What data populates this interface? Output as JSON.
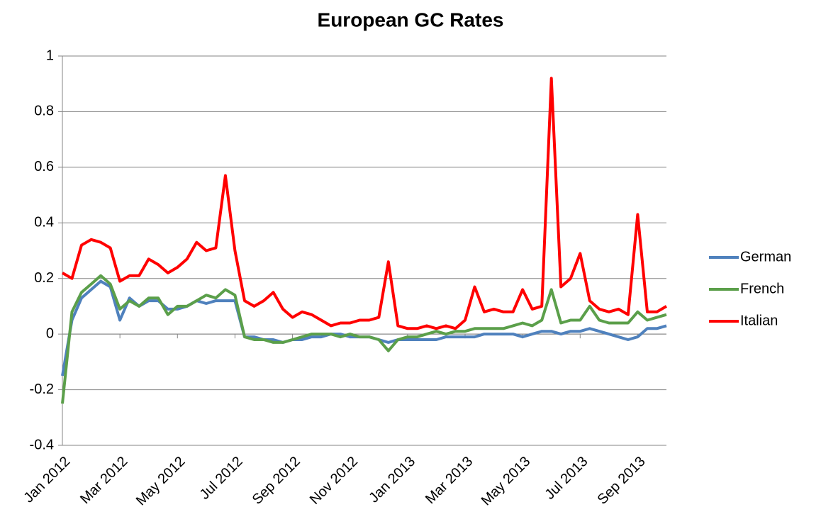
{
  "chart_data": {
    "type": "line",
    "title": "European GC Rates",
    "categories": [
      "Jan 2012",
      null,
      null,
      null,
      null,
      null,
      "Mar 2012",
      null,
      null,
      null,
      null,
      null,
      "May 2012",
      null,
      null,
      null,
      null,
      null,
      "Jul 2012",
      null,
      null,
      null,
      null,
      null,
      "Sep 2012",
      null,
      null,
      null,
      null,
      null,
      "Nov 2012",
      null,
      null,
      null,
      null,
      null,
      "Jan 2013",
      null,
      null,
      null,
      null,
      null,
      "Mar 2013",
      null,
      null,
      null,
      null,
      null,
      "May 2013",
      null,
      null,
      null,
      null,
      null,
      "Jul 2013",
      null,
      null,
      null,
      null,
      null,
      "Sep 2013",
      null,
      null,
      null
    ],
    "series": [
      {
        "name": "German",
        "color": "#4f81bd",
        "values": [
          -0.15,
          0.05,
          0.13,
          0.16,
          0.19,
          0.17,
          0.05,
          0.13,
          0.1,
          0.12,
          0.12,
          0.09,
          0.09,
          0.1,
          0.12,
          0.11,
          0.12,
          0.12,
          0.12,
          -0.01,
          -0.01,
          -0.02,
          -0.02,
          -0.03,
          -0.02,
          -0.02,
          -0.01,
          -0.01,
          0,
          0,
          -0.01,
          -0.01,
          -0.01,
          -0.02,
          -0.03,
          -0.02,
          -0.02,
          -0.02,
          -0.02,
          -0.02,
          -0.01,
          -0.01,
          -0.01,
          -0.01,
          0,
          0,
          0,
          0,
          -0.01,
          0,
          0.01,
          0.01,
          0,
          0.01,
          0.01,
          0.02,
          0.01,
          0,
          -0.01,
          -0.02,
          -0.01,
          0.02,
          0.02,
          0.03
        ]
      },
      {
        "name": "French",
        "color": "#5b9f4a",
        "values": [
          -0.25,
          0.08,
          0.15,
          0.18,
          0.21,
          0.18,
          0.09,
          0.12,
          0.1,
          0.13,
          0.13,
          0.07,
          0.1,
          0.1,
          0.12,
          0.14,
          0.13,
          0.16,
          0.14,
          -0.01,
          -0.02,
          -0.02,
          -0.03,
          -0.03,
          -0.02,
          -0.01,
          0,
          0,
          0,
          -0.01,
          0,
          -0.01,
          -0.01,
          -0.02,
          -0.06,
          -0.02,
          -0.01,
          -0.01,
          0,
          0.01,
          0,
          0.01,
          0.01,
          0.02,
          0.02,
          0.02,
          0.02,
          0.03,
          0.04,
          0.03,
          0.05,
          0.16,
          0.04,
          0.05,
          0.05,
          0.1,
          0.05,
          0.04,
          0.04,
          0.04,
          0.08,
          0.05,
          0.06,
          0.07
        ]
      },
      {
        "name": "Italian",
        "color": "#ff0000",
        "values": [
          0.22,
          0.2,
          0.32,
          0.34,
          0.33,
          0.31,
          0.19,
          0.21,
          0.21,
          0.27,
          0.25,
          0.22,
          0.24,
          0.27,
          0.33,
          0.3,
          0.31,
          0.57,
          0.3,
          0.12,
          0.1,
          0.12,
          0.15,
          0.09,
          0.06,
          0.08,
          0.07,
          0.05,
          0.03,
          0.04,
          0.04,
          0.05,
          0.05,
          0.06,
          0.26,
          0.03,
          0.02,
          0.02,
          0.03,
          0.02,
          0.03,
          0.02,
          0.05,
          0.17,
          0.08,
          0.09,
          0.08,
          0.08,
          0.16,
          0.09,
          0.1,
          0.92,
          0.17,
          0.2,
          0.29,
          0.12,
          0.09,
          0.08,
          0.09,
          0.07,
          0.43,
          0.08,
          0.08,
          0.1
        ]
      }
    ],
    "ylim": [
      -0.4,
      1
    ],
    "yticks": [
      -0.4,
      -0.2,
      0,
      0.2,
      0.4,
      0.6,
      0.8,
      1
    ],
    "grid": true,
    "legend": "right"
  }
}
